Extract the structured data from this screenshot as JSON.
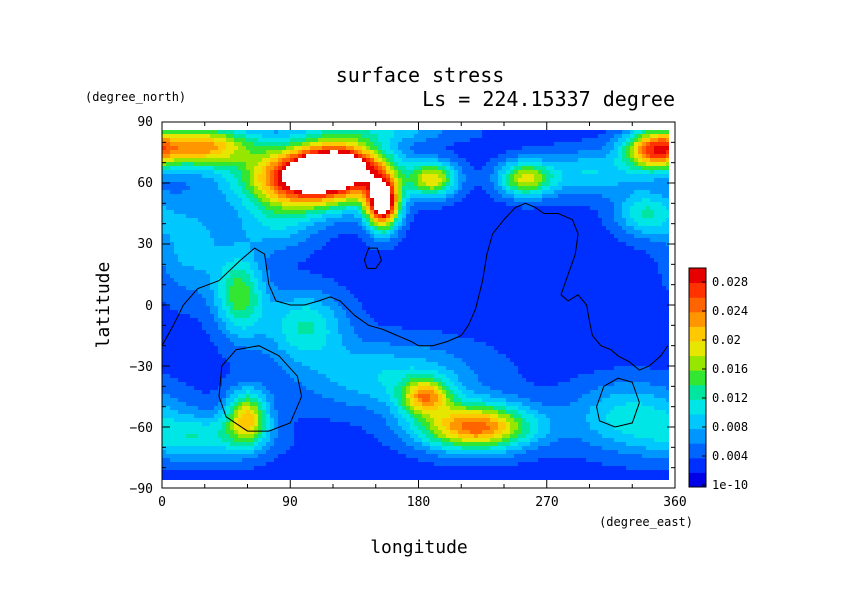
{
  "chart_data": {
    "type": "heatmap",
    "title": "surface stress",
    "subtitle": "Ls = 224.15337 degree",
    "xlabel": "longitude",
    "ylabel": "latitude",
    "x_unit": "(degree_east)",
    "y_unit": "(degree_north)",
    "xlim": [
      0,
      360
    ],
    "ylim": [
      -90,
      90
    ],
    "x_ticks": [
      "0",
      "90",
      "180",
      "270",
      "360"
    ],
    "y_ticks": [
      "90",
      "60",
      "30",
      "0",
      "−30",
      "−60",
      "−90"
    ],
    "colorbar": {
      "ticks": [
        "0.028",
        "0.024",
        "0.02",
        "0.016",
        "0.012",
        "0.008",
        "0.004",
        "1e-10"
      ],
      "min": 0,
      "max": 0.03,
      "colors": [
        "#0000e6",
        "#0030ff",
        "#0064ff",
        "#0096ff",
        "#00c8ff",
        "#00e6e6",
        "#00e6a0",
        "#32e632",
        "#96e600",
        "#e6e600",
        "#ffc800",
        "#ff9600",
        "#ff6400",
        "#ff3200",
        "#e60000"
      ]
    },
    "grid": false,
    "background_level": 0.003,
    "features": [
      {
        "lon": 105,
        "lat": 62,
        "slon": 32,
        "slat": 10,
        "value": 0.03
      },
      {
        "lon": 25,
        "lat": 78,
        "slon": 28,
        "slat": 7,
        "value": 0.02
      },
      {
        "lon": 125,
        "lat": 70,
        "slon": 22,
        "slat": 8,
        "value": 0.02
      },
      {
        "lon": 155,
        "lat": 50,
        "slon": 8,
        "slat": 9,
        "value": 0.03
      },
      {
        "lon": 345,
        "lat": 76,
        "slon": 14,
        "slat": 7,
        "value": 0.018
      },
      {
        "lon": 190,
        "lat": 62,
        "slon": 12,
        "slat": 6,
        "value": 0.016
      },
      {
        "lon": 255,
        "lat": 62,
        "slon": 13,
        "slat": 6,
        "value": 0.015
      },
      {
        "lon": 55,
        "lat": 5,
        "slon": 12,
        "slat": 14,
        "value": 0.012
      },
      {
        "lon": 100,
        "lat": -10,
        "slon": 20,
        "slat": 12,
        "value": 0.009
      },
      {
        "lon": 60,
        "lat": -55,
        "slon": 10,
        "slat": 9,
        "value": 0.016
      },
      {
        "lon": 185,
        "lat": -45,
        "slon": 12,
        "slat": 6,
        "value": 0.016
      },
      {
        "lon": 220,
        "lat": -60,
        "slon": 28,
        "slat": 8,
        "value": 0.022
      },
      {
        "lon": 160,
        "lat": -35,
        "slon": 45,
        "slat": 12,
        "value": 0.007
      },
      {
        "lon": 330,
        "lat": -55,
        "slon": 30,
        "slat": 12,
        "value": 0.008
      },
      {
        "lon": 30,
        "lat": -65,
        "slon": 30,
        "slat": 8,
        "value": 0.008
      },
      {
        "lon": 340,
        "lat": 45,
        "slon": 15,
        "slat": 8,
        "value": 0.009
      },
      {
        "lon": 300,
        "lat": 65,
        "slon": 25,
        "slat": 8,
        "value": 0.007
      },
      {
        "lon": 20,
        "lat": 30,
        "slon": 18,
        "slat": 18,
        "value": 0.006
      },
      {
        "lon": 80,
        "lat": 40,
        "slon": 20,
        "slat": 10,
        "value": 0.006
      },
      {
        "lon": 150,
        "lat": 85,
        "slon": 40,
        "slat": 4,
        "value": 0.006
      }
    ],
    "contours": [
      [
        [
          0,
          -20
        ],
        [
          8,
          -10
        ],
        [
          15,
          0
        ],
        [
          25,
          8
        ],
        [
          40,
          12
        ],
        [
          55,
          22
        ],
        [
          65,
          28
        ],
        [
          72,
          25
        ],
        [
          75,
          10
        ],
        [
          80,
          2
        ],
        [
          90,
          0
        ],
        [
          100,
          0
        ],
        [
          110,
          2
        ],
        [
          118,
          4
        ],
        [
          125,
          2
        ],
        [
          135,
          -5
        ],
        [
          145,
          -10
        ],
        [
          155,
          -12
        ],
        [
          165,
          -15
        ],
        [
          175,
          -18
        ],
        [
          180,
          -20
        ],
        [
          190,
          -20
        ],
        [
          200,
          -18
        ],
        [
          210,
          -15
        ],
        [
          215,
          -10
        ],
        [
          220,
          -2
        ],
        [
          225,
          12
        ],
        [
          228,
          25
        ],
        [
          232,
          35
        ],
        [
          240,
          42
        ],
        [
          248,
          48
        ],
        [
          255,
          50
        ],
        [
          262,
          48
        ],
        [
          268,
          45
        ],
        [
          278,
          45
        ],
        [
          288,
          42
        ],
        [
          292,
          35
        ],
        [
          290,
          25
        ],
        [
          285,
          15
        ],
        [
          280,
          5
        ],
        [
          285,
          2
        ],
        [
          292,
          5
        ],
        [
          298,
          0
        ],
        [
          300,
          -8
        ],
        [
          302,
          -15
        ],
        [
          308,
          -20
        ],
        [
          315,
          -22
        ],
        [
          320,
          -25
        ],
        [
          328,
          -28
        ],
        [
          335,
          -32
        ],
        [
          342,
          -30
        ],
        [
          350,
          -25
        ],
        [
          355,
          -20
        ]
      ],
      [
        [
          40,
          -45
        ],
        [
          42,
          -30
        ],
        [
          52,
          -22
        ],
        [
          68,
          -20
        ],
        [
          82,
          -25
        ],
        [
          95,
          -35
        ],
        [
          98,
          -45
        ],
        [
          90,
          -58
        ],
        [
          75,
          -62
        ],
        [
          60,
          -62
        ],
        [
          45,
          -55
        ],
        [
          40,
          -45
        ]
      ],
      [
        [
          305,
          -50
        ],
        [
          310,
          -40
        ],
        [
          320,
          -36
        ],
        [
          330,
          -38
        ],
        [
          335,
          -48
        ],
        [
          330,
          -58
        ],
        [
          318,
          -60
        ],
        [
          307,
          -57
        ],
        [
          305,
          -50
        ]
      ],
      [
        [
          142,
          22
        ],
        [
          145,
          28
        ],
        [
          151,
          28
        ],
        [
          154,
          22
        ],
        [
          150,
          18
        ],
        [
          144,
          18
        ],
        [
          142,
          22
        ]
      ]
    ]
  }
}
